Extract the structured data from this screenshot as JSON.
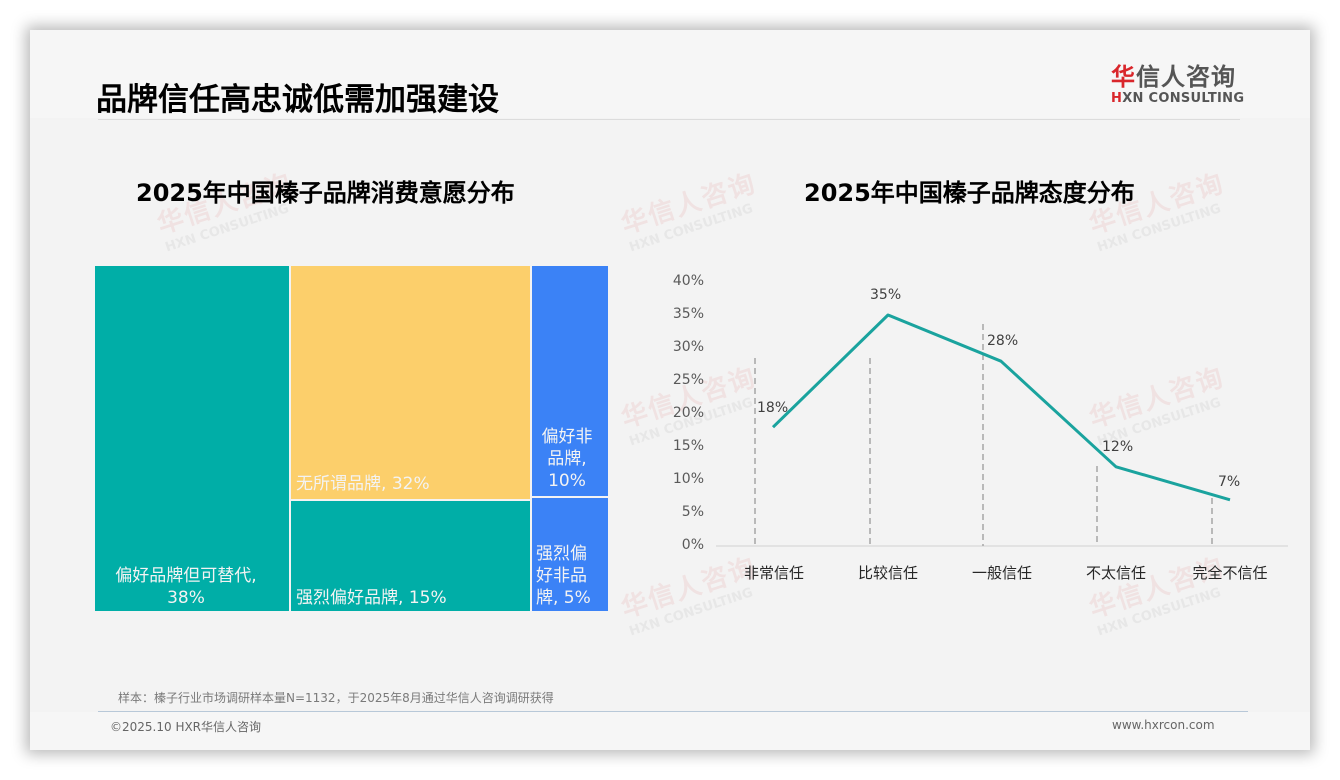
{
  "page": {
    "title": "品牌信任高忠诚低需加强建设",
    "logo": {
      "cn_accent": "华",
      "cn_rest": "信人咨询",
      "en_accent": "H",
      "en_rest": "XN CONSULTING"
    },
    "watermark": {
      "cn": "华信人咨询",
      "en": "HXN CONSULTING"
    },
    "note": "样本：榛子行业市场调研样本量N=1132，于2025年8月通过华信人咨询调研获得",
    "copyright": "©2025.10 HXR华信人咨询",
    "website": "www.hxrcon.com"
  },
  "chart_data": [
    {
      "type": "treemap",
      "title": "2025年中国榛子品牌消费意愿分布",
      "categories": [
        "偏好品牌但可替代",
        "无所谓品牌",
        "强烈偏好品牌",
        "偏好非品牌",
        "强烈偏好非品牌"
      ],
      "values": [
        38,
        32,
        15,
        10,
        5
      ],
      "unit": "%",
      "colors": [
        "#00aea7",
        "#fccf6b",
        "#00aea7",
        "#3b82f6",
        "#3b82f6"
      ],
      "labels": [
        {
          "text": "偏好品牌但可替代,",
          "value": "38%"
        },
        {
          "text": "无所谓品牌,",
          "value": "32%"
        },
        {
          "text": "强烈偏好品牌,",
          "value": "15%"
        },
        {
          "line1": "偏好非",
          "line2": "品牌,",
          "line3": "10%"
        },
        {
          "line1": "强烈偏",
          "line2": "好非品",
          "line3": "牌, 5%"
        }
      ]
    },
    {
      "type": "line",
      "title": "2025年中国榛子品牌态度分布",
      "categories": [
        "非常信任",
        "比较信任",
        "一般信任",
        "不太信任",
        "完全不信任"
      ],
      "values": [
        18,
        35,
        28,
        12,
        7
      ],
      "data_labels": [
        "18%",
        "35%",
        "28%",
        "12%",
        "7%"
      ],
      "yticks": [
        "0%",
        "5%",
        "10%",
        "15%",
        "20%",
        "25%",
        "30%",
        "35%",
        "40%"
      ],
      "ylim": [
        0,
        40
      ],
      "xlabel": "",
      "ylabel": "",
      "grid": false,
      "line_color": "#1aa39e",
      "legend": null
    }
  ]
}
